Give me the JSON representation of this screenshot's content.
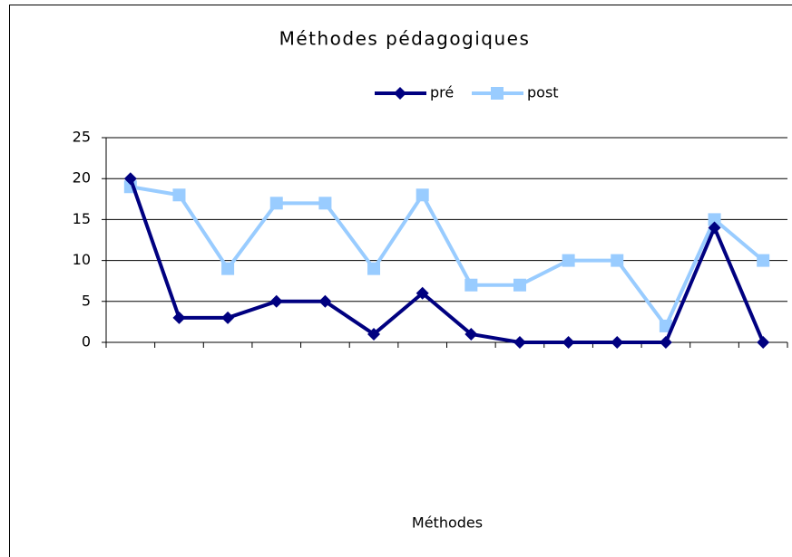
{
  "chart_data": {
    "type": "line",
    "title": "Méthodes pédagogiques",
    "x_label": "Méthodes",
    "categories": [
      null,
      null,
      null,
      null,
      null,
      null,
      null,
      null,
      null,
      null,
      null,
      null,
      null,
      null
    ],
    "series": [
      {
        "name": "pré",
        "color": "#000080",
        "marker": "diamond",
        "values": [
          20,
          3,
          3,
          5,
          5,
          1,
          6,
          1,
          0,
          0,
          0,
          0,
          14,
          0
        ]
      },
      {
        "name": "post",
        "color": "#99ccff",
        "marker": "square",
        "values": [
          19,
          18,
          9,
          17,
          17,
          9,
          18,
          7,
          7,
          10,
          10,
          2,
          15,
          10
        ]
      }
    ],
    "ylim": [
      0,
      25
    ],
    "yticks": [
      0,
      5,
      10,
      15,
      20,
      25
    ],
    "grid": true,
    "legend": "top"
  }
}
